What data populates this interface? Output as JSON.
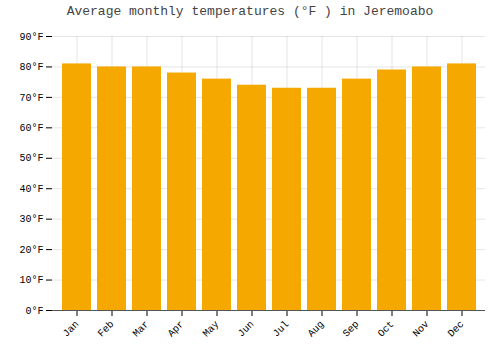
{
  "chart_data": {
    "type": "bar",
    "title": "Average monthly temperatures (°F ) in Jeremoabo",
    "categories": [
      "Jan",
      "Feb",
      "Mar",
      "Apr",
      "May",
      "Jun",
      "Jul",
      "Aug",
      "Sep",
      "Oct",
      "Nov",
      "Dec"
    ],
    "values": [
      81,
      80,
      80,
      78,
      76,
      74,
      73,
      73,
      76,
      79,
      80,
      81
    ],
    "color": "#F5A800",
    "ylim": [
      0,
      90
    ],
    "yticks": [
      {
        "value": 0,
        "label": "0°F"
      },
      {
        "value": 10,
        "label": "10°F"
      },
      {
        "value": 20,
        "label": "20°F"
      },
      {
        "value": 30,
        "label": "30°F"
      },
      {
        "value": 40,
        "label": "40°F"
      },
      {
        "value": 50,
        "label": "50°F"
      },
      {
        "value": 60,
        "label": "60°F"
      },
      {
        "value": 70,
        "label": "70°F"
      },
      {
        "value": 80,
        "label": "80°F"
      },
      {
        "value": 90,
        "label": "90°F"
      }
    ],
    "grid": true
  }
}
